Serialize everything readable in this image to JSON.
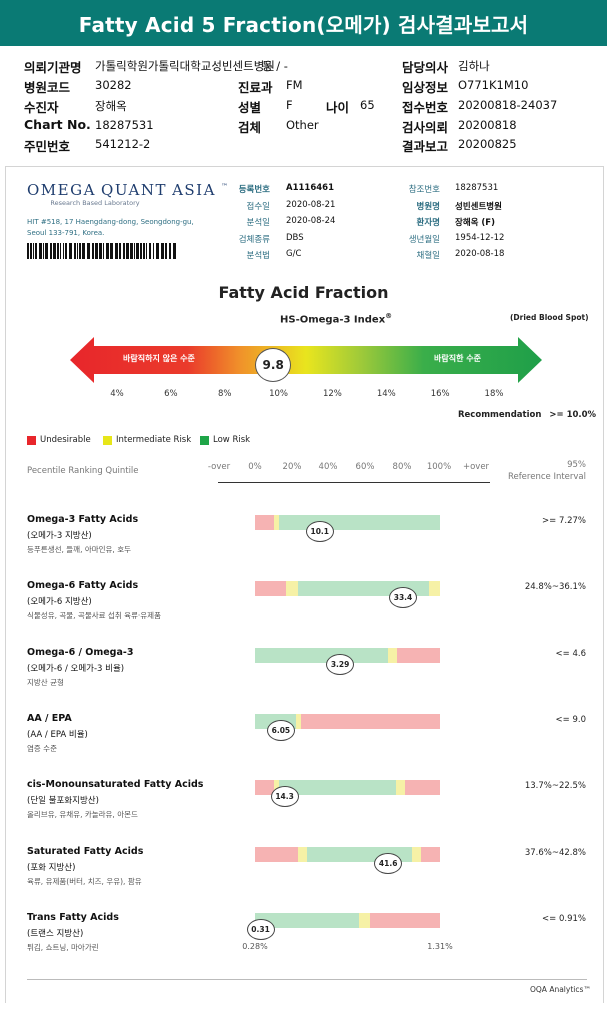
{
  "title": "Fatty Acid 5 Fraction(오메가) 검사결과보고서",
  "header": {
    "left": [
      {
        "label": "의뢰기관명",
        "value": "가톨릭학원가톨릭대학교성빈센트병원"
      },
      {
        "label": "병원코드",
        "value": "30282"
      },
      {
        "label": "수진자",
        "value": "장해옥"
      },
      {
        "label": "Chart No.",
        "value": "18287531"
      },
      {
        "label": "주민번호",
        "value": "541212-2"
      }
    ],
    "mid": [
      {
        "label": "동 / -",
        "value": ""
      },
      {
        "label": "진료과",
        "value": "FM"
      },
      {
        "label": "성별",
        "value": "F"
      },
      {
        "label": "검체",
        "value": "Other"
      }
    ],
    "age": {
      "label": "나이",
      "value": "65"
    },
    "right": [
      {
        "label": "담당의사",
        "value": "김하나"
      },
      {
        "label": "임상정보",
        "value": "O771K1M10"
      },
      {
        "label": "접수번호",
        "value": "20200818-24037"
      },
      {
        "label": "검사의뢰",
        "value": "20200818"
      },
      {
        "label": "결과보고",
        "value": "20200825"
      }
    ]
  },
  "lab": {
    "logo_word1": "Omega",
    "logo_word2": "Quant",
    "logo_word3": "Asia",
    "tm": "™",
    "tagline": "Research Based Laboratory",
    "address1": "HIT #518, 17 Haengdang-dong, Seongdong-gu,",
    "address2": "Seoul 133-791, Korea."
  },
  "meta_mid": [
    {
      "label": "등록번호",
      "value": "A1116461",
      "bold": true
    },
    {
      "label": "접수일",
      "value": "2020-08-21"
    },
    {
      "label": "분석일",
      "value": "2020-08-24"
    },
    {
      "label": "검체종류",
      "value": "DBS"
    },
    {
      "label": "분석법",
      "value": "G/C"
    }
  ],
  "meta_right": [
    {
      "label": "참조번호",
      "value": "18287531"
    },
    {
      "label": "병원명",
      "value": "성빈센트병원"
    },
    {
      "label": "환자명",
      "value": "장해옥 (F)"
    },
    {
      "label": "생년월일",
      "value": "1954-12-12"
    },
    {
      "label": "채혈일",
      "value": "2020-08-18"
    }
  ],
  "fraction": {
    "title": "Fatty Acid Fraction",
    "index_label": "HS-Omega-3 Index",
    "index_sup": "®",
    "sample_type": "(Dried Blood Spot)",
    "value": "9.8",
    "value_num": 9.8,
    "left_label": "바람직하지 않은 수준",
    "right_label": "바람직한 수준",
    "ticks": [
      "4%",
      "6%",
      "8%",
      "10%",
      "12%",
      "14%",
      "16%",
      "18%"
    ],
    "recommendation_label": "Recommendation",
    "recommendation_value": ">= 10.0%"
  },
  "legend": [
    {
      "label": "Undesirable",
      "color": "#e8262b"
    },
    {
      "label": "Intermediate Risk",
      "color": "#e7e619"
    },
    {
      "label": "Low Risk",
      "color": "#1fa548"
    }
  ],
  "scale_header": {
    "title": "Pecentile Ranking Quintile",
    "ticks": [
      "-over",
      "0%",
      "20%",
      "40%",
      "60%",
      "80%",
      "100%",
      "+over"
    ],
    "ref_line1": "95%",
    "ref_line2": "Reference Interval"
  },
  "colors": {
    "red": "#f6b3b3",
    "yellow": "#f6f1a6",
    "green": "#b9e3c6"
  },
  "items": [
    {
      "title": "Omega-3 Fatty Acids",
      "sub": "(오메가-3 지방산)",
      "note": "등푸른생선, 들깨, 아마인유, 호두",
      "value": "10.1",
      "pos": 35,
      "segments": [
        [
          "red",
          10
        ],
        [
          "yellow",
          3
        ],
        [
          "green",
          87
        ]
      ],
      "ref": ">= 7.27%"
    },
    {
      "title": "Omega-6 Fatty Acids",
      "sub": "(오메가-6 지방산)",
      "note": "식물성유, 곡물, 곡물사료 섭취 육류·유제품",
      "value": "33.4",
      "pos": 80,
      "segments": [
        [
          "red",
          17
        ],
        [
          "yellow",
          6
        ],
        [
          "green",
          71
        ],
        [
          "yellow",
          6
        ]
      ],
      "ref": "24.8%~36.1%"
    },
    {
      "title": "Omega-6 / Omega-3",
      "sub": "(오메가-6 / 오메가-3 비율)",
      "note": "지방산 균형",
      "value": "3.29",
      "pos": 46,
      "segments": [
        [
          "green",
          72
        ],
        [
          "yellow",
          5
        ],
        [
          "red",
          23
        ]
      ],
      "ref": "<= 4.6"
    },
    {
      "title": "AA / EPA",
      "sub": "(AA / EPA 비율)",
      "note": "염증 수준",
      "value": "6.05",
      "pos": 14,
      "segments": [
        [
          "green",
          22
        ],
        [
          "yellow",
          3
        ],
        [
          "red",
          75
        ]
      ],
      "ref": "<= 9.0"
    },
    {
      "title": "cis-Monounsaturated Fatty Acids",
      "sub": "(단일 불포화지방산)",
      "note": "올리브유, 유채유, 카놀라유, 아몬드",
      "value": "14.3",
      "pos": 16,
      "segments": [
        [
          "red",
          10
        ],
        [
          "yellow",
          3
        ],
        [
          "green",
          63
        ],
        [
          "yellow",
          5
        ],
        [
          "red",
          19
        ]
      ],
      "ref": "13.7%~22.5%"
    },
    {
      "title": "Saturated Fatty Acids",
      "sub": "(포화 지방산)",
      "note": "육류, 유제품(버터, 치즈, 우유), 팜유",
      "value": "41.6",
      "pos": 72,
      "segments": [
        [
          "red",
          23
        ],
        [
          "yellow",
          5
        ],
        [
          "green",
          57
        ],
        [
          "yellow",
          5
        ],
        [
          "red",
          10
        ]
      ],
      "ref": "37.6%~42.8%"
    },
    {
      "title": "Trans Fatty Acids",
      "sub": "(트랜스 지방산)",
      "note": "튀김, 쇼트닝, 마아가린",
      "value": "0.31",
      "pos": 3,
      "segments": [
        [
          "green",
          56
        ],
        [
          "yellow",
          6
        ],
        [
          "red",
          38
        ]
      ],
      "ref": "<= 0.91%"
    }
  ],
  "trans_limits": {
    "left": "0.28%",
    "right": "1.31%"
  },
  "footer": "OQA Analytics™"
}
